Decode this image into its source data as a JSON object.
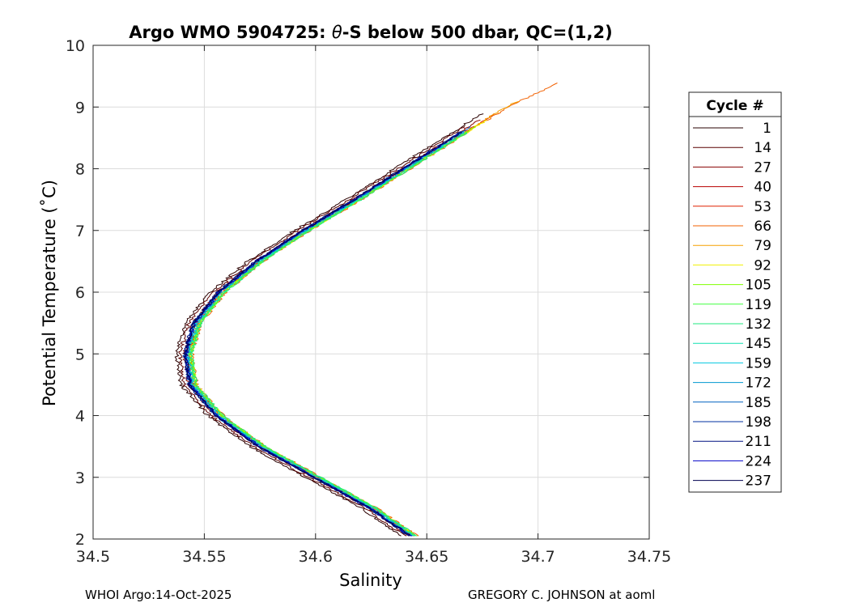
{
  "chart_data": {
    "type": "line",
    "title_prefix": "Argo WMO 5904725: ",
    "title_symbol": "θ",
    "title_suffix": "-S below 500 dbar,  QC=(1,2)",
    "xlabel": "Salinity",
    "ylabel": "Potential Temperature (˚C)",
    "xlim": [
      34.5,
      34.75
    ],
    "ylim": [
      2,
      10
    ],
    "xticks": [
      34.5,
      34.55,
      34.6,
      34.65,
      34.7,
      34.75
    ],
    "xtick_labels": [
      "34.5",
      "34.55",
      "34.6",
      "34.65",
      "34.7",
      "34.75"
    ],
    "yticks": [
      2,
      3,
      4,
      5,
      6,
      7,
      8,
      9,
      10
    ],
    "ytick_labels": [
      "2",
      "3",
      "4",
      "5",
      "6",
      "7",
      "8",
      "9",
      "10"
    ],
    "grid": true,
    "legend_title": "Cycle #",
    "legend_position": "outside-right",
    "series": [
      {
        "name": "1",
        "color": "#2a0000",
        "s_offset": -0.0045,
        "t_max": 8.9
      },
      {
        "name": "14",
        "color": "#5a0000",
        "s_offset": -0.003,
        "t_max": 8.7
      },
      {
        "name": "27",
        "color": "#8a0000",
        "s_offset": -0.001,
        "t_max": 8.8
      },
      {
        "name": "40",
        "color": "#b80000",
        "s_offset": 0.0005,
        "t_max": 8.6
      },
      {
        "name": "53",
        "color": "#e02000",
        "s_offset": 0.0012,
        "t_max": 8.9
      },
      {
        "name": "66",
        "color": "#f26000",
        "s_offset": 0.0025,
        "t_max": 9.4
      },
      {
        "name": "79",
        "color": "#f5a000",
        "s_offset": 0.0015,
        "t_max": 9.1
      },
      {
        "name": "92",
        "color": "#f0f000",
        "s_offset": 0.002,
        "t_max": 8.8
      },
      {
        "name": "105",
        "color": "#80ff00",
        "s_offset": 0.0018,
        "t_max": 8.7
      },
      {
        "name": "119",
        "color": "#40ff40",
        "s_offset": 0.002,
        "t_max": 8.6
      },
      {
        "name": "132",
        "color": "#20e880",
        "s_offset": 0.0022,
        "t_max": 8.6
      },
      {
        "name": "145",
        "color": "#10e0b0",
        "s_offset": 0.001,
        "t_max": 8.5
      },
      {
        "name": "159",
        "color": "#00c8e0",
        "s_offset": 0.0005,
        "t_max": 8.6
      },
      {
        "name": "172",
        "color": "#0098d0",
        "s_offset": 0.0,
        "t_max": 8.6
      },
      {
        "name": "185",
        "color": "#0060c0",
        "s_offset": -0.0005,
        "t_max": 8.7
      },
      {
        "name": "198",
        "color": "#0030a0",
        "s_offset": -0.0008,
        "t_max": 8.6
      },
      {
        "name": "211",
        "color": "#001080",
        "s_offset": -0.001,
        "t_max": 8.5
      },
      {
        "name": "224",
        "color": "#0000c8",
        "s_offset": -0.0002,
        "t_max": 8.6
      },
      {
        "name": "237",
        "color": "#000050",
        "s_offset": -0.0006,
        "t_max": 8.6
      }
    ],
    "reference_curve": {
      "theta": [
        2.05,
        2.5,
        3.0,
        3.5,
        4.0,
        4.5,
        5.0,
        5.5,
        6.0,
        6.5,
        7.0,
        7.5,
        8.0,
        8.5,
        9.0,
        9.4
      ],
      "salinity": [
        34.643,
        34.625,
        34.6,
        34.575,
        34.556,
        34.544,
        34.542,
        34.546,
        34.557,
        34.574,
        34.595,
        34.618,
        34.64,
        34.662,
        34.684,
        34.707
      ]
    }
  },
  "footer": {
    "left": "WHOI Argo:14-Oct-2025",
    "right": "GREGORY C. JOHNSON at aoml"
  }
}
